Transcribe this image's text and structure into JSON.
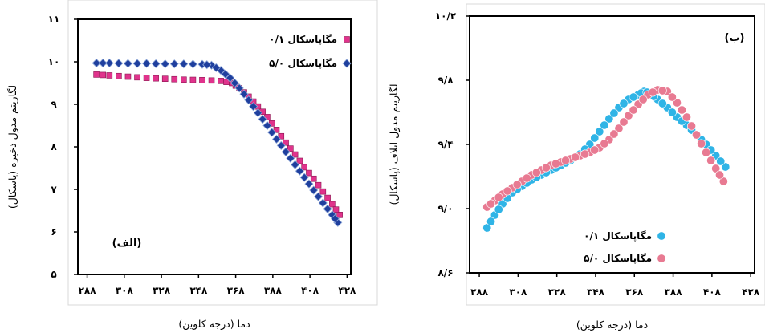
{
  "chart_data": [
    {
      "type": "scatter",
      "panel_label": "(الف)",
      "xlabel": "دما (درجه کلوین)",
      "ylabel": "لگاریتم مدول ذخیره (پاسکال)",
      "xlim": [
        283,
        430
      ],
      "ylim": [
        5,
        11
      ],
      "x_ticks": [
        288,
        308,
        328,
        348,
        368,
        388,
        408,
        428
      ],
      "x_tick_labels": [
        "۲۸۸",
        "۳۰۸",
        "۳۲۸",
        "۳۴۸",
        "۳۶۸",
        "۳۸۸",
        "۴۰۸",
        "۴۲۸"
      ],
      "y_ticks": [
        5,
        6,
        7,
        8,
        9,
        10,
        11
      ],
      "y_tick_labels": [
        "۵",
        "۶",
        "۷",
        "۸",
        "۹",
        "۱۰",
        "۱۱"
      ],
      "legend_position": "top-right",
      "series": [
        {
          "name": "۰/۱ مگاپاسکال",
          "color": "#e0338c",
          "marker": "square",
          "points": [
            [
              293,
              9.7
            ],
            [
              300,
              9.68
            ],
            [
              310,
              9.65
            ],
            [
              320,
              9.62
            ],
            [
              330,
              9.6
            ],
            [
              340,
              9.58
            ],
            [
              350,
              9.57
            ],
            [
              360,
              9.55
            ],
            [
              366,
              9.5
            ],
            [
              370,
              9.38
            ],
            [
              375,
              9.18
            ],
            [
              380,
              8.95
            ],
            [
              385,
              8.7
            ],
            [
              390,
              8.4
            ],
            [
              395,
              8.1
            ],
            [
              400,
              7.82
            ],
            [
              405,
              7.52
            ],
            [
              410,
              7.25
            ],
            [
              415,
              6.95
            ],
            [
              420,
              6.65
            ],
            [
              424,
              6.4
            ]
          ]
        },
        {
          "name": "۵/۰ مگاپاسکال",
          "color": "#1f3f9e",
          "marker": "diamond",
          "points": [
            [
              293,
              9.97
            ],
            [
              300,
              9.97
            ],
            [
              310,
              9.96
            ],
            [
              320,
              9.96
            ],
            [
              330,
              9.95
            ],
            [
              340,
              9.95
            ],
            [
              350,
              9.94
            ],
            [
              355,
              9.92
            ],
            [
              360,
              9.8
            ],
            [
              365,
              9.62
            ],
            [
              370,
              9.38
            ],
            [
              375,
              9.1
            ],
            [
              380,
              8.8
            ],
            [
              385,
              8.5
            ],
            [
              390,
              8.18
            ],
            [
              395,
              7.88
            ],
            [
              400,
              7.58
            ],
            [
              405,
              7.28
            ],
            [
              410,
              6.98
            ],
            [
              415,
              6.68
            ],
            [
              420,
              6.4
            ],
            [
              423,
              6.22
            ]
          ]
        }
      ]
    },
    {
      "type": "scatter",
      "panel_label": "(ب)",
      "xlabel": "دما (درجه کلوین)",
      "ylabel": "لگاریتم مدول اتلاف (پاسکال)",
      "xlim": [
        283,
        430
      ],
      "ylim": [
        8.6,
        10.2
      ],
      "x_ticks": [
        288,
        308,
        328,
        348,
        368,
        388,
        408,
        428
      ],
      "x_tick_labels": [
        "۲۸۸",
        "۳۰۸",
        "۳۲۸",
        "۳۴۸",
        "۳۶۸",
        "۳۸۸",
        "۴۰۸",
        "۴۲۸"
      ],
      "y_ticks": [
        8.6,
        9.0,
        9.4,
        9.8,
        10.2
      ],
      "y_tick_labels": [
        "۸/۶",
        "۹/۰",
        "۹/۴",
        "۹/۸",
        "۱۰/۲"
      ],
      "legend_position": "bottom-right",
      "series": [
        {
          "name": "۰/۱ مگاپاسکال",
          "color": "#2fb4e6",
          "marker": "circle",
          "points": [
            [
              292,
              8.88
            ],
            [
              296,
              8.96
            ],
            [
              300,
              9.03
            ],
            [
              305,
              9.1
            ],
            [
              310,
              9.14
            ],
            [
              315,
              9.18
            ],
            [
              320,
              9.21
            ],
            [
              325,
              9.24
            ],
            [
              330,
              9.27
            ],
            [
              335,
              9.3
            ],
            [
              340,
              9.34
            ],
            [
              345,
              9.4
            ],
            [
              350,
              9.48
            ],
            [
              355,
              9.56
            ],
            [
              360,
              9.63
            ],
            [
              365,
              9.68
            ],
            [
              370,
              9.71
            ],
            [
              373,
              9.73
            ],
            [
              376,
              9.72
            ],
            [
              380,
              9.68
            ],
            [
              385,
              9.63
            ],
            [
              390,
              9.57
            ],
            [
              395,
              9.52
            ],
            [
              400,
              9.46
            ],
            [
              405,
              9.4
            ],
            [
              410,
              9.33
            ],
            [
              415,
              9.26
            ]
          ]
        },
        {
          "name": "۵/۰ مگاپاسکال",
          "color": "#e87a92",
          "marker": "circle",
          "points": [
            [
              292,
              9.01
            ],
            [
              296,
              9.05
            ],
            [
              300,
              9.09
            ],
            [
              305,
              9.13
            ],
            [
              310,
              9.17
            ],
            [
              315,
              9.21
            ],
            [
              320,
              9.24
            ],
            [
              325,
              9.27
            ],
            [
              330,
              9.29
            ],
            [
              335,
              9.31
            ],
            [
              340,
              9.33
            ],
            [
              345,
              9.35
            ],
            [
              350,
              9.38
            ],
            [
              355,
              9.43
            ],
            [
              360,
              9.5
            ],
            [
              365,
              9.58
            ],
            [
              370,
              9.65
            ],
            [
              375,
              9.71
            ],
            [
              380,
              9.74
            ],
            [
              385,
              9.73
            ],
            [
              390,
              9.66
            ],
            [
              395,
              9.57
            ],
            [
              400,
              9.46
            ],
            [
              405,
              9.35
            ],
            [
              410,
              9.25
            ],
            [
              414,
              9.17
            ]
          ]
        }
      ]
    }
  ]
}
